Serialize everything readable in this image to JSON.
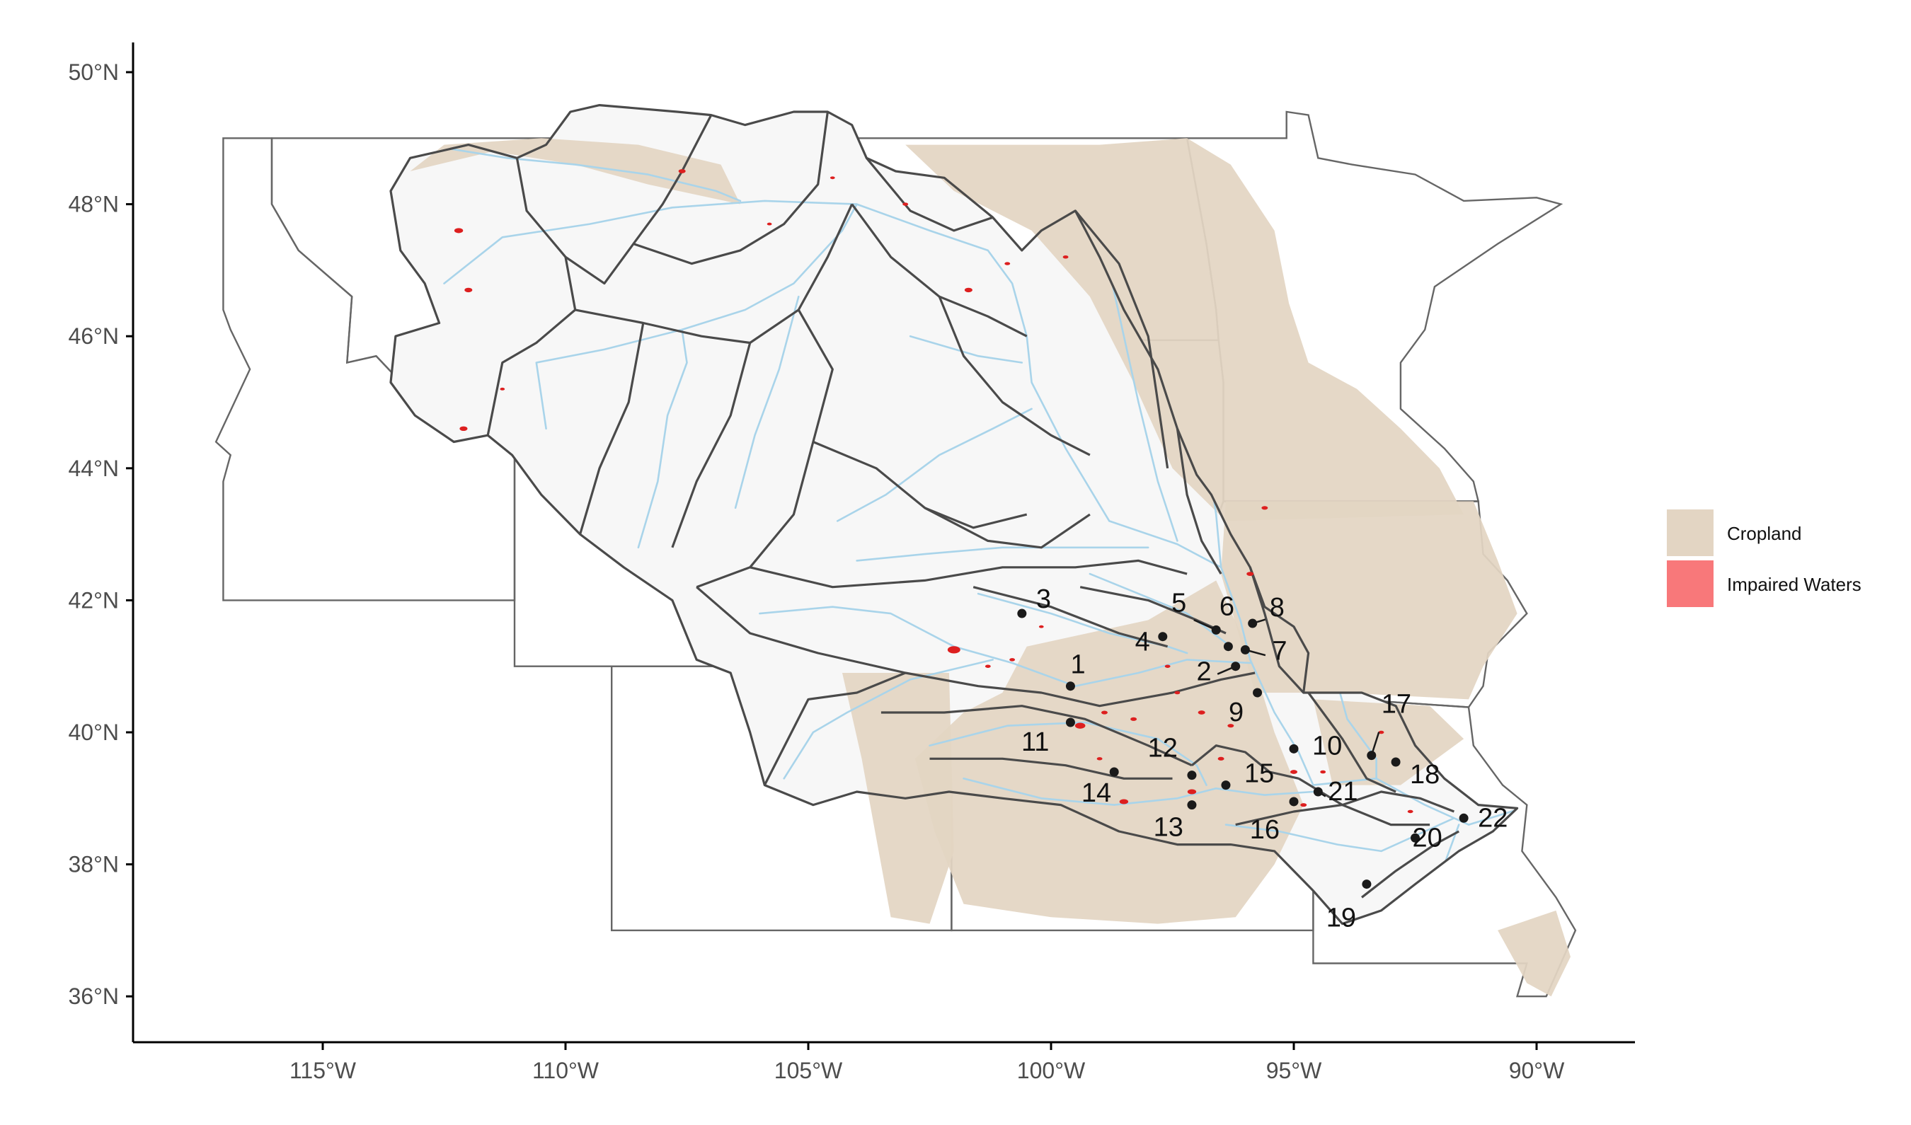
{
  "map": {
    "latitude_ticks": [
      "36°N",
      "38°N",
      "40°N",
      "42°N",
      "44°N",
      "46°N",
      "48°N",
      "50°N"
    ],
    "longitude_ticks": [
      "115°W",
      "110°W",
      "105°W",
      "100°W",
      "95°W",
      "90°W"
    ],
    "legend": [
      {
        "label": "Cropland",
        "color": "#e3d5c3"
      },
      {
        "label": "Impaired Waters",
        "color": "#f8787a"
      }
    ],
    "colors": {
      "axis": "#000000",
      "state_border": "#666666",
      "watershed_border": "#4a4a4a",
      "basin_fill": "#f7f7f7",
      "cropland": "#e3d5c3",
      "river": "#a9d4ea",
      "impaired": "#dd1f1f",
      "site_point": "#1a1a1a"
    },
    "monitoring_sites": [
      {
        "id": "1",
        "lon": -99.6,
        "lat": 40.7
      },
      {
        "id": "2",
        "lon": -96.2,
        "lat": 41.0
      },
      {
        "id": "3",
        "lon": -100.6,
        "lat": 41.8
      },
      {
        "id": "4",
        "lon": -97.7,
        "lat": 41.45
      },
      {
        "id": "5",
        "lon": -96.6,
        "lat": 41.55
      },
      {
        "id": "6",
        "lon": -96.35,
        "lat": 41.3
      },
      {
        "id": "7",
        "lon": -96.0,
        "lat": 41.25
      },
      {
        "id": "8",
        "lon": -95.85,
        "lat": 41.65
      },
      {
        "id": "9",
        "lon": -95.75,
        "lat": 40.6
      },
      {
        "id": "10",
        "lon": -95.0,
        "lat": 39.75
      },
      {
        "id": "11",
        "lon": -99.6,
        "lat": 40.15
      },
      {
        "id": "12",
        "lon": -97.1,
        "lat": 39.35
      },
      {
        "id": "13",
        "lon": -97.1,
        "lat": 38.9
      },
      {
        "id": "14",
        "lon": -98.7,
        "lat": 39.4
      },
      {
        "id": "15",
        "lon": -96.4,
        "lat": 39.2
      },
      {
        "id": "16",
        "lon": -95.0,
        "lat": 38.95
      },
      {
        "id": "17",
        "lon": -93.4,
        "lat": 39.65
      },
      {
        "id": "18",
        "lon": -92.9,
        "lat": 39.55
      },
      {
        "id": "19",
        "lon": -93.5,
        "lat": 37.7
      },
      {
        "id": "20",
        "lon": -92.5,
        "lat": 38.4
      },
      {
        "id": "21",
        "lon": -94.5,
        "lat": 39.1
      },
      {
        "id": "22",
        "lon": -91.5,
        "lat": 38.7
      }
    ]
  }
}
